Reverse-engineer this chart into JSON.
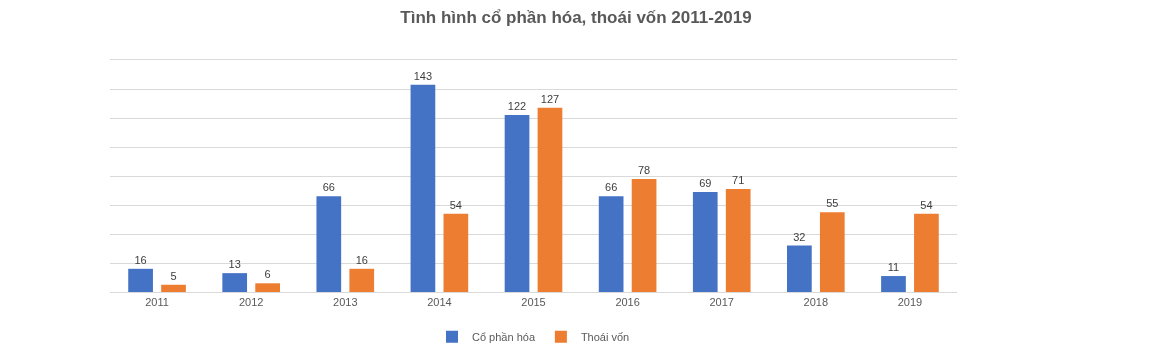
{
  "chart_data": {
    "type": "bar",
    "title": "Tình hình cổ phần hóa, thoái vốn 2011-2019",
    "categories": [
      "2011",
      "2012",
      "2013",
      "2014",
      "2015",
      "2016",
      "2017",
      "2018",
      "2019"
    ],
    "series": [
      {
        "name": "Cổ phần hóa",
        "color": "#4472c4",
        "values": [
          16,
          13,
          66,
          143,
          122,
          66,
          69,
          32,
          11
        ]
      },
      {
        "name": "Thoái vốn",
        "color": "#ed7d31",
        "values": [
          5,
          6,
          16,
          54,
          127,
          78,
          71,
          55,
          54
        ]
      }
    ],
    "ylim": [
      0,
      160
    ],
    "yticks": [
      {
        "value": 0,
        "label": null
      },
      {
        "value": 20,
        "label": null
      },
      {
        "value": 40,
        "label": null
      },
      {
        "value": 60,
        "label": null
      },
      {
        "value": 80,
        "label": null
      },
      {
        "value": 100,
        "label": null
      },
      {
        "value": 120,
        "label": null
      },
      {
        "value": 140,
        "label": null
      },
      {
        "value": 160,
        "label": null
      }
    ],
    "tick_labels": "x",
    "grid": "y",
    "legend": "bottom",
    "data_labels": true
  }
}
